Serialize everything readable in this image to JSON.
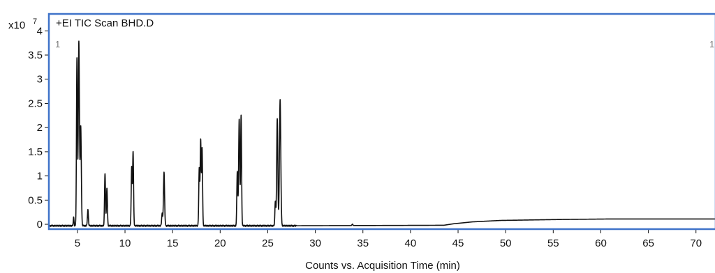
{
  "chart_data": {
    "type": "line",
    "title": "+EI TIC Scan BHD.D",
    "xlabel": "Counts vs. Acquisition Time (min)",
    "y_multiplier_base": "x10",
    "y_multiplier_exp": "7",
    "xlim": [
      2,
      72
    ],
    "ylim": [
      -0.1,
      4.35
    ],
    "x_ticks": [
      5,
      10,
      15,
      20,
      25,
      30,
      35,
      40,
      45,
      50,
      55,
      60,
      65,
      70
    ],
    "y_ticks": [
      0,
      0.5,
      1,
      1.5,
      2,
      2.5,
      3,
      3.5,
      4
    ],
    "y_tick_labels": [
      "0",
      "0.5",
      "1",
      "1.5",
      "2",
      "2.5",
      "3",
      "3.5",
      "4"
    ],
    "marker_left": "1",
    "marker_right": "1",
    "baseline": -0.03,
    "peaks": [
      {
        "t": 4.6,
        "h": 0.17,
        "w": 0.04
      },
      {
        "t": 4.95,
        "h": 3.45,
        "w": 0.05
      },
      {
        "t": 5.15,
        "h": 3.8,
        "w": 0.06
      },
      {
        "t": 5.35,
        "h": 2.05,
        "w": 0.06
      },
      {
        "t": 6.1,
        "h": 0.33,
        "w": 0.05
      },
      {
        "t": 7.9,
        "h": 1.08,
        "w": 0.05
      },
      {
        "t": 8.1,
        "h": 0.78,
        "w": 0.05
      },
      {
        "t": 10.7,
        "h": 1.2,
        "w": 0.05
      },
      {
        "t": 10.85,
        "h": 1.52,
        "w": 0.05
      },
      {
        "t": 13.9,
        "h": 0.25,
        "w": 0.05
      },
      {
        "t": 14.1,
        "h": 1.1,
        "w": 0.06
      },
      {
        "t": 17.8,
        "h": 1.18,
        "w": 0.05
      },
      {
        "t": 17.95,
        "h": 1.76,
        "w": 0.05
      },
      {
        "t": 18.1,
        "h": 1.6,
        "w": 0.05
      },
      {
        "t": 21.8,
        "h": 1.12,
        "w": 0.05
      },
      {
        "t": 22.0,
        "h": 2.2,
        "w": 0.06
      },
      {
        "t": 22.2,
        "h": 2.27,
        "w": 0.05
      },
      {
        "t": 25.8,
        "h": 0.5,
        "w": 0.05
      },
      {
        "t": 26.0,
        "h": 2.22,
        "w": 0.06
      },
      {
        "t": 26.3,
        "h": 2.6,
        "w": 0.07
      },
      {
        "t": 33.9,
        "h": 0.03,
        "w": 0.05
      }
    ],
    "drift": [
      [
        2,
        0
      ],
      [
        28,
        0
      ],
      [
        43.5,
        0.01
      ],
      [
        44.5,
        0.04
      ],
      [
        46.5,
        0.08
      ],
      [
        49.5,
        0.11
      ],
      [
        56,
        0.13
      ],
      [
        61,
        0.14
      ],
      [
        72,
        0.14
      ]
    ],
    "colors": {
      "frame": "#3f73c9",
      "trace": "#111111",
      "marker": "#777777"
    }
  }
}
